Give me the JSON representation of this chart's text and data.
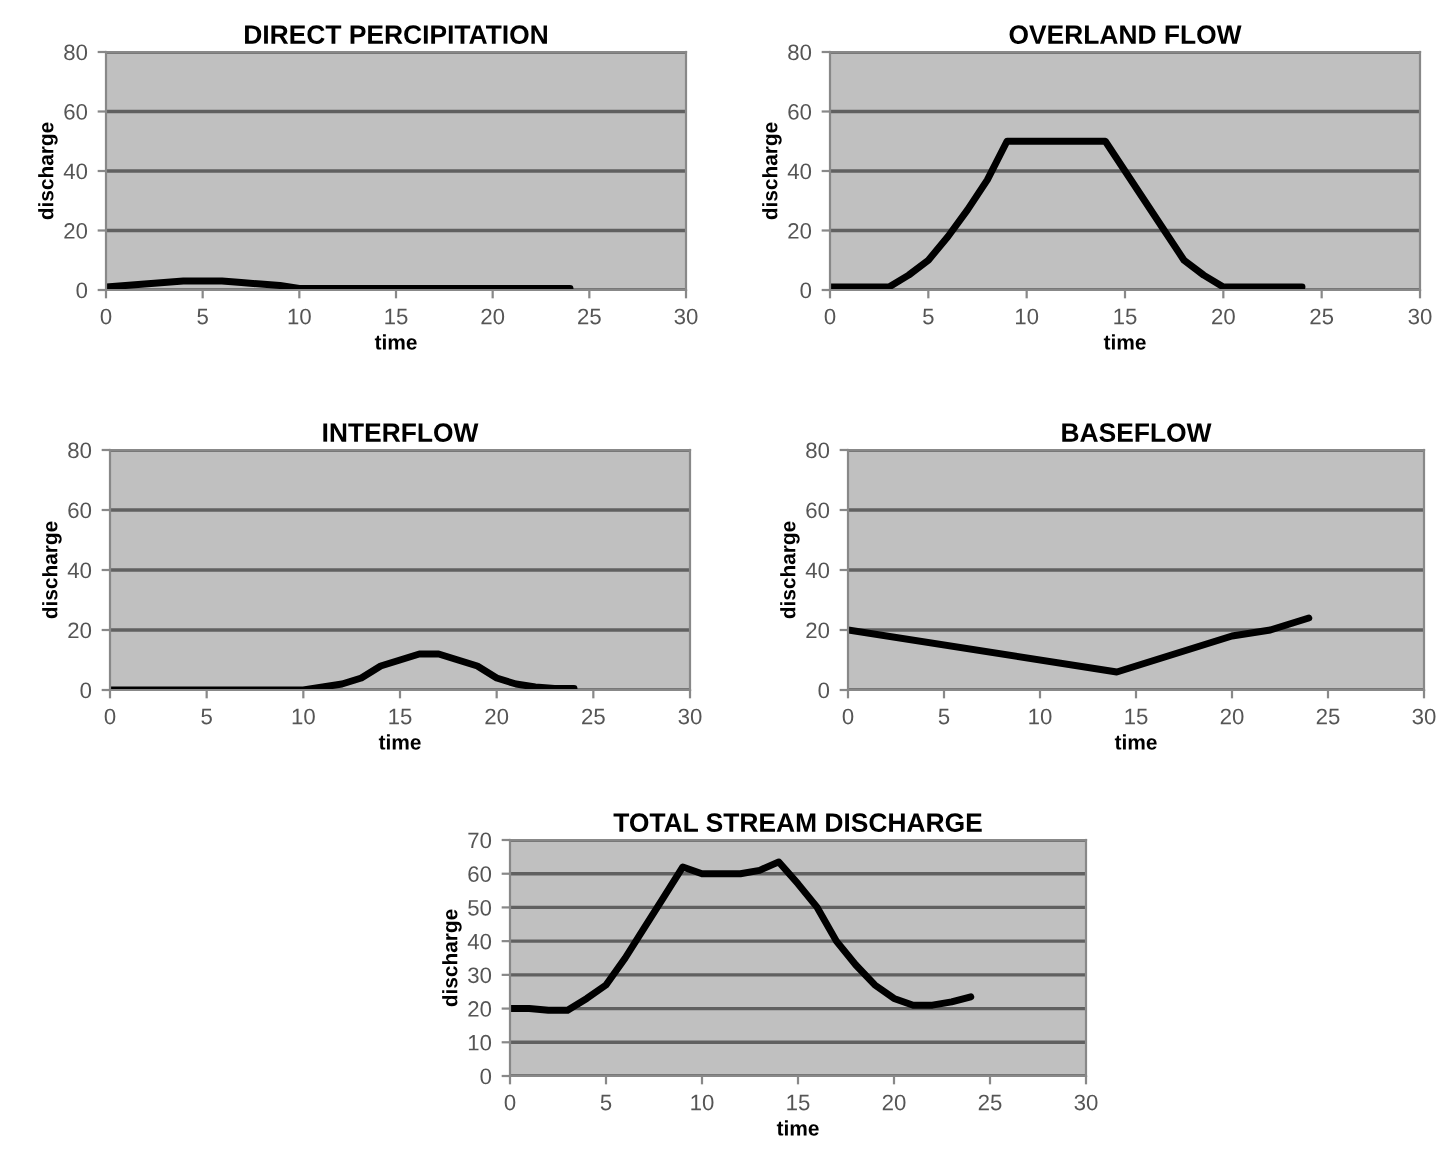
{
  "chart_data": [
    {
      "type": "line",
      "title": "DIRECT PERCIPITATION",
      "xlabel": "time",
      "ylabel": "discharge",
      "grid": "y",
      "xlim": [
        0,
        30
      ],
      "ylim": [
        0,
        80
      ],
      "xticks": [
        0,
        5,
        10,
        15,
        20,
        25,
        30
      ],
      "yticks": [
        0,
        20,
        40,
        60,
        80
      ],
      "x": [
        0,
        1,
        2,
        3,
        4,
        5,
        6,
        7,
        8,
        9,
        10,
        11,
        12,
        13,
        14,
        15,
        16,
        17,
        18,
        19,
        20,
        21,
        22,
        23,
        24
      ],
      "series": [
        {
          "color": "#000000",
          "values": [
            1,
            1.5,
            2,
            2.5,
            3,
            3,
            3,
            2.5,
            2,
            1.5,
            0.5,
            0.5,
            0.5,
            0.5,
            0.5,
            0.5,
            0.5,
            0.5,
            0.5,
            0.5,
            0.5,
            0.5,
            0.5,
            0.5,
            0.5
          ]
        }
      ]
    },
    {
      "type": "line",
      "title": "OVERLAND FLOW",
      "xlabel": "time",
      "ylabel": "discharge",
      "grid": "y",
      "xlim": [
        0,
        30
      ],
      "ylim": [
        0,
        80
      ],
      "xticks": [
        0,
        5,
        10,
        15,
        20,
        25,
        30
      ],
      "yticks": [
        0,
        20,
        40,
        60,
        80
      ],
      "x": [
        0,
        1,
        2,
        3,
        4,
        5,
        6,
        7,
        8,
        9,
        10,
        11,
        12,
        13,
        14,
        15,
        16,
        17,
        18,
        19,
        20,
        21,
        22,
        23,
        24
      ],
      "series": [
        {
          "color": "#000000",
          "values": [
            1,
            1,
            1,
            1,
            5,
            10,
            18,
            27,
            37,
            50,
            50,
            50,
            50,
            50,
            50,
            40,
            30,
            20,
            10,
            5,
            1,
            1,
            1,
            1,
            1
          ]
        }
      ]
    },
    {
      "type": "line",
      "title": "INTERFLOW",
      "xlabel": "time",
      "ylabel": "discharge",
      "grid": "y",
      "xlim": [
        0,
        30
      ],
      "ylim": [
        0,
        80
      ],
      "xticks": [
        0,
        5,
        10,
        15,
        20,
        25,
        30
      ],
      "yticks": [
        0,
        20,
        40,
        60,
        80
      ],
      "x": [
        0,
        1,
        2,
        3,
        4,
        5,
        6,
        7,
        8,
        9,
        10,
        11,
        12,
        13,
        14,
        15,
        16,
        17,
        18,
        19,
        20,
        21,
        22,
        23,
        24
      ],
      "series": [
        {
          "color": "#000000",
          "values": [
            0,
            0,
            0,
            0,
            0,
            0,
            0,
            0,
            0,
            0,
            0,
            1,
            2,
            4,
            8,
            10,
            12,
            12,
            10,
            8,
            4,
            2,
            1,
            0.5,
            0.5
          ]
        }
      ]
    },
    {
      "type": "line",
      "title": "BASEFLOW",
      "xlabel": "time",
      "ylabel": "discharge",
      "grid": "y",
      "xlim": [
        0,
        30
      ],
      "ylim": [
        0,
        80
      ],
      "xticks": [
        0,
        5,
        10,
        15,
        20,
        25,
        30
      ],
      "yticks": [
        0,
        20,
        40,
        60,
        80
      ],
      "x": [
        0,
        14,
        20,
        22,
        24
      ],
      "series": [
        {
          "color": "#000000",
          "values": [
            20,
            6,
            18,
            20,
            24
          ]
        }
      ]
    },
    {
      "type": "line",
      "title": "TOTAL STREAM DISCHARGE",
      "xlabel": "time",
      "ylabel": "discharge",
      "grid": "y",
      "xlim": [
        0,
        30
      ],
      "ylim": [
        0,
        70
      ],
      "xticks": [
        0,
        5,
        10,
        15,
        20,
        25,
        30
      ],
      "yticks": [
        0,
        10,
        20,
        30,
        40,
        50,
        60,
        70
      ],
      "x": [
        0,
        1,
        2,
        3,
        4,
        5,
        6,
        7,
        8,
        9,
        10,
        11,
        12,
        13,
        14,
        15,
        16,
        17,
        18,
        19,
        20,
        21,
        22,
        23,
        24
      ],
      "series": [
        {
          "color": "#000000",
          "values": [
            20,
            20,
            19.5,
            19.5,
            23,
            27,
            35,
            44,
            53,
            62,
            60,
            60,
            60,
            61,
            63.5,
            57,
            50,
            40,
            33,
            27,
            23,
            21,
            21,
            22,
            23.5
          ]
        }
      ]
    }
  ]
}
